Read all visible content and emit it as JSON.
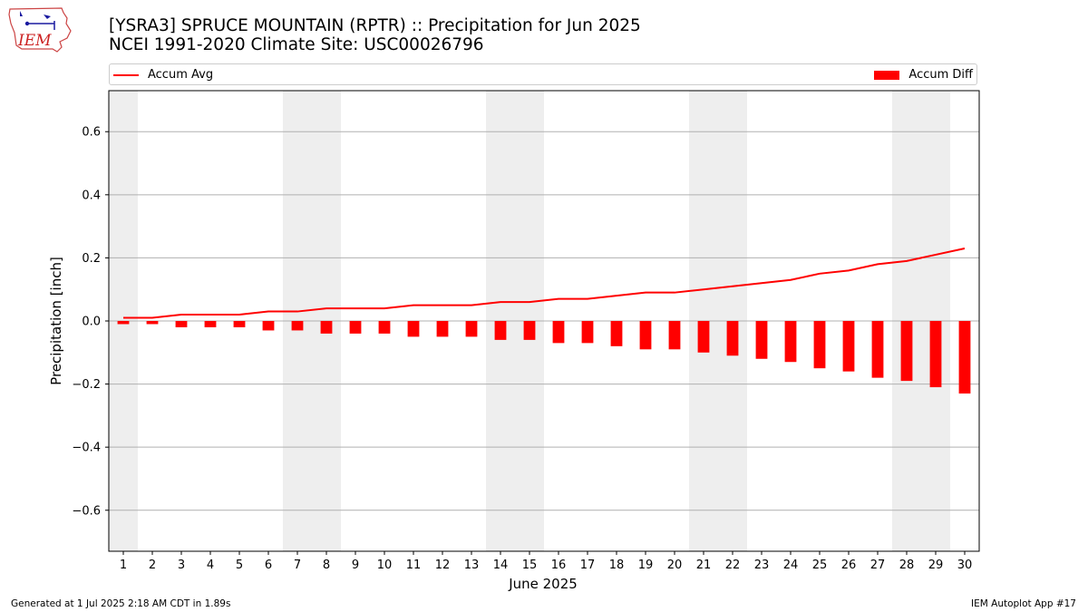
{
  "header": {
    "title_line1": "[YSRA3] SPRUCE MOUNTAIN (RPTR) :: Precipitation for Jun 2025",
    "title_line2": "NCEI 1991-2020 Climate Site: USC00026796"
  },
  "logo": {
    "text": "IEM",
    "icon": "iem-state-outline-logo"
  },
  "footer": {
    "left": "Generated at 1 Jul 2025 2:18 AM CDT in 1.89s",
    "right": "IEM Autoplot App #17"
  },
  "colors": {
    "series": "#ff0000",
    "weekend_shade": "#eeeeee",
    "grid": "#b0b0b0"
  },
  "chart_data": {
    "type": "bar",
    "xlabel": "June 2025",
    "ylabel": "Precipitation [inch]",
    "ylim": [
      -0.73,
      0.73
    ],
    "yticks": [
      -0.6,
      -0.4,
      -0.2,
      0.0,
      0.2,
      0.4,
      0.6
    ],
    "ytick_labels": [
      "−0.6",
      "−0.4",
      "−0.2",
      "0.0",
      "0.2",
      "0.4",
      "0.6"
    ],
    "grid": "horizontal",
    "legend": "top",
    "weekend_shading_days": [
      1,
      7,
      8,
      14,
      15,
      21,
      22,
      28,
      29
    ],
    "x": [
      1,
      2,
      3,
      4,
      5,
      6,
      7,
      8,
      9,
      10,
      11,
      12,
      13,
      14,
      15,
      16,
      17,
      18,
      19,
      20,
      21,
      22,
      23,
      24,
      25,
      26,
      27,
      28,
      29,
      30
    ],
    "series": [
      {
        "name": "Accum Avg",
        "type": "line",
        "color": "#ff0000",
        "values": [
          0.01,
          0.01,
          0.02,
          0.02,
          0.02,
          0.03,
          0.03,
          0.04,
          0.04,
          0.04,
          0.05,
          0.05,
          0.05,
          0.06,
          0.06,
          0.07,
          0.07,
          0.08,
          0.09,
          0.09,
          0.1,
          0.11,
          0.12,
          0.13,
          0.15,
          0.16,
          0.18,
          0.19,
          0.21,
          0.23
        ]
      },
      {
        "name": "Accum Diff",
        "type": "bar",
        "color": "#ff0000",
        "values": [
          -0.01,
          -0.01,
          -0.02,
          -0.02,
          -0.02,
          -0.03,
          -0.03,
          -0.04,
          -0.04,
          -0.04,
          -0.05,
          -0.05,
          -0.05,
          -0.06,
          -0.06,
          -0.07,
          -0.07,
          -0.08,
          -0.09,
          -0.09,
          -0.1,
          -0.11,
          -0.12,
          -0.13,
          -0.15,
          -0.16,
          -0.18,
          -0.19,
          -0.21,
          -0.23
        ]
      }
    ]
  }
}
